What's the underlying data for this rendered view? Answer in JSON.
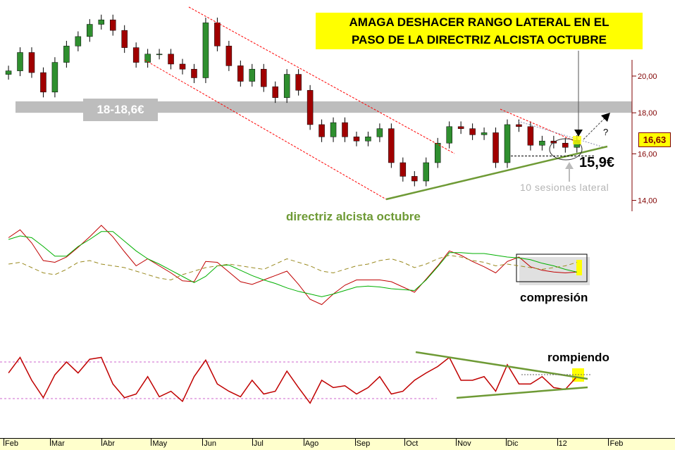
{
  "annotations": {
    "title_line1": "AMAGA DESHACER RANGO LATERAL EN EL",
    "title_line2": "PASO DE LA DIRECTRIZ ALCISTA OCTUBRE",
    "resistance_band": "18-18,6€",
    "support": "15,9€",
    "sessions": "10 sesiones lateral",
    "trendline": "directriz alcista octubre",
    "compression": "compresión",
    "breaking": "rompiendo",
    "question": "?",
    "last_price": "16,63"
  },
  "colors": {
    "up_candle": "#2f8f2f",
    "down_candle": "#a00000",
    "axis": "#800000",
    "channel": "#ff0000",
    "trendline": "#6e9a35",
    "highlight": "#ffff00",
    "band": "#bdbdbd",
    "macd_line": "#c00000",
    "signal_line": "#00b000",
    "third_line": "#9a8a20",
    "oscillator": "#c00000",
    "osc_levels": "#cc66cc"
  },
  "chart_data": [
    {
      "type": "candlestick",
      "yscale": "log",
      "ylim": [
        13.5,
        24
      ],
      "yticks": [
        {
          "value": 20,
          "label": "20,00"
        },
        {
          "value": 18,
          "label": "18,00"
        },
        {
          "value": 16,
          "label": "16,00"
        },
        {
          "value": 14,
          "label": "14,00"
        }
      ],
      "resistance_band": [
        18,
        18.6
      ],
      "support_level": 15.9,
      "last_price": 16.63,
      "dates": [
        "2011-02-04",
        "2011-02-11",
        "2011-02-18",
        "2011-02-25",
        "2011-03-04",
        "2011-03-11",
        "2011-03-18",
        "2011-03-25",
        "2011-04-01",
        "2011-04-08",
        "2011-04-15",
        "2011-04-22",
        "2011-04-29",
        "2011-05-06",
        "2011-05-13",
        "2011-05-20",
        "2011-05-27",
        "2011-06-03",
        "2011-06-10",
        "2011-06-17",
        "2011-06-24",
        "2011-07-01",
        "2011-07-08",
        "2011-07-15",
        "2011-07-22",
        "2011-07-29",
        "2011-08-05",
        "2011-08-12",
        "2011-08-19",
        "2011-08-26",
        "2011-09-02",
        "2011-09-09",
        "2011-09-16",
        "2011-09-23",
        "2011-09-30",
        "2011-10-07",
        "2011-10-14",
        "2011-10-21",
        "2011-10-28",
        "2011-11-04",
        "2011-11-11",
        "2011-11-18",
        "2011-11-25",
        "2011-12-02",
        "2011-12-09",
        "2011-12-16",
        "2011-12-23",
        "2011-12-30",
        "2012-01-06",
        "2012-01-13"
      ],
      "close": [
        20.3,
        21.4,
        20.2,
        19.1,
        20.8,
        21.8,
        22.4,
        23.2,
        23.5,
        22.8,
        21.7,
        20.8,
        21.3,
        21.3,
        20.7,
        20.4,
        19.9,
        23.3,
        21.8,
        20.6,
        19.7,
        20.4,
        19.4,
        18.8,
        20.1,
        19.2,
        17.4,
        16.8,
        17.5,
        16.8,
        16.6,
        16.8,
        17.2,
        15.6,
        15.0,
        14.8,
        15.6,
        16.5,
        17.3,
        17.2,
        16.9,
        17.0,
        15.6,
        17.4,
        17.3,
        16.4,
        16.6,
        16.5,
        16.3,
        16.63
      ]
    },
    {
      "type": "line",
      "series": [
        {
          "values": [
            82,
            91,
            76,
            56,
            54,
            60,
            71,
            83,
            96,
            83,
            66,
            50,
            58,
            50,
            42,
            33,
            32,
            55,
            54,
            43,
            32,
            29,
            34,
            39,
            44,
            29,
            12,
            6,
            18,
            28,
            34,
            34,
            34,
            32,
            26,
            20,
            35,
            50,
            67,
            62,
            55,
            49,
            42,
            55,
            60,
            49,
            45,
            43,
            42,
            43
          ]
        },
        {
          "values": [
            80,
            84,
            82,
            72,
            61,
            61,
            72,
            80,
            89,
            89,
            78,
            67,
            58,
            52,
            45,
            38,
            31,
            38,
            50,
            51,
            45,
            39,
            34,
            30,
            25,
            21,
            18,
            15,
            18,
            22,
            26,
            27,
            26,
            24,
            23,
            22,
            34,
            49,
            65,
            65,
            64,
            64,
            62,
            60,
            59,
            57,
            53,
            50,
            46,
            43
          ]
        },
        {
          "values": [
            52,
            54,
            48,
            42,
            40,
            46,
            54,
            56,
            52,
            50,
            48,
            44,
            40,
            36,
            34,
            40,
            44,
            48,
            50,
            52,
            50,
            48,
            46,
            52,
            58,
            54,
            50,
            44,
            42,
            46,
            50,
            52,
            56,
            58,
            54,
            48,
            52,
            58,
            62,
            60,
            56,
            54,
            50,
            52,
            50,
            48,
            46,
            48,
            50,
            54
          ]
        }
      ]
    },
    {
      "type": "line",
      "levels": [
        70,
        30
      ],
      "series": [
        {
          "values": [
            58,
            75,
            50,
            31,
            56,
            70,
            58,
            73,
            75,
            46,
            31,
            35,
            54,
            32,
            38,
            27,
            54,
            72,
            46,
            38,
            32,
            50,
            35,
            38,
            60,
            42,
            25,
            50,
            42,
            44,
            35,
            42,
            54,
            35,
            38,
            50,
            58,
            65,
            75,
            50,
            50,
            54,
            38,
            67,
            46,
            46,
            54,
            42,
            40,
            54
          ]
        }
      ]
    }
  ],
  "x_axis": {
    "months": [
      {
        "date": "2011-02-01",
        "label": "Feb"
      },
      {
        "date": "2011-03-01",
        "label": "Mar"
      },
      {
        "date": "2011-04-01",
        "label": "Abr"
      },
      {
        "date": "2011-05-01",
        "label": "May"
      },
      {
        "date": "2011-06-01",
        "label": "Jun"
      },
      {
        "date": "2011-07-01",
        "label": "Jul"
      },
      {
        "date": "2011-08-01",
        "label": "Ago"
      },
      {
        "date": "2011-09-01",
        "label": "Sep"
      },
      {
        "date": "2011-10-01",
        "label": "Oct"
      },
      {
        "date": "2011-11-01",
        "label": "Nov"
      },
      {
        "date": "2011-12-01",
        "label": "Dic"
      },
      {
        "date": "2012-01-01",
        "label": "12"
      },
      {
        "date": "2012-02-01",
        "label": "Feb"
      }
    ]
  }
}
